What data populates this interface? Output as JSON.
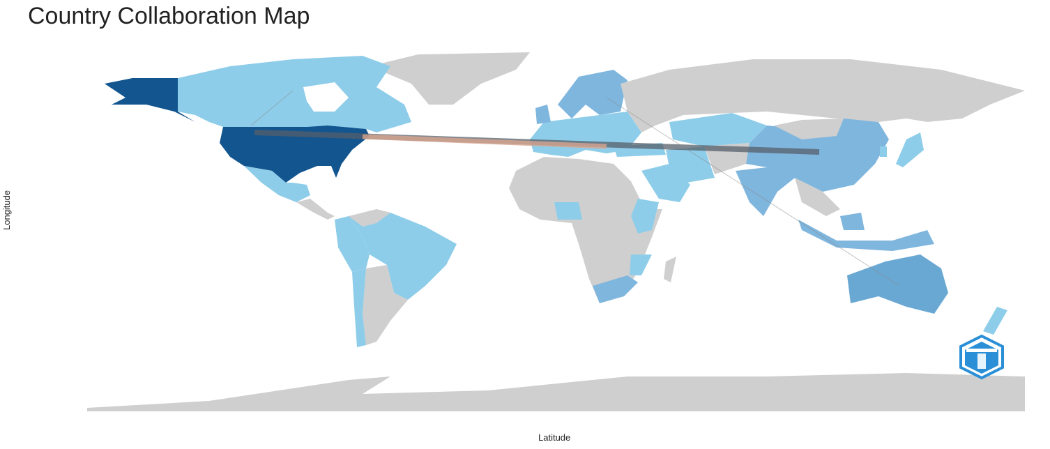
{
  "title": "Country Collaboration Map",
  "x_axis_label": "Latitude",
  "y_axis_label": "Longitude",
  "colors": {
    "no_data": "#cfcfcf",
    "low": "#8ecde9",
    "medium": "#7fb6de",
    "high": "#6aa8d4",
    "top": "#12558f",
    "link_main": "#555f6a",
    "link_secondary": "#d8a58f"
  },
  "countries": {
    "USA": "top",
    "Canada": "low",
    "Mexico": "low",
    "Brazil": "low",
    "Colombia": "low",
    "Peru": "low",
    "Chile": "low",
    "China": "medium",
    "India": "medium",
    "Indonesia": "medium",
    "Malaysia": "medium",
    "Australia": "high",
    "New Zealand": "low",
    "Japan": "low",
    "South Korea": "low",
    "Kazakhstan": "low",
    "Iran": "low",
    "Saudi Arabia": "low",
    "Turkey": "low",
    "Ethiopia": "low",
    "Nigeria": "low",
    "South Africa": "medium",
    "Mozambique": "low",
    "Scandinavia": "medium",
    "Europe": "low",
    "Greenland (Denmark)": "no_data",
    "Russia": "no_data"
  },
  "links": [
    {
      "from": "USA",
      "to": "China",
      "style": "main"
    },
    {
      "from": "USA",
      "to": "Italy",
      "style": "secondary"
    },
    {
      "from": "Canada",
      "to": "Norway",
      "style": "thin"
    },
    {
      "from": "Finland",
      "to": "Australia",
      "style": "thin"
    }
  ],
  "logo": "bibliometrix"
}
